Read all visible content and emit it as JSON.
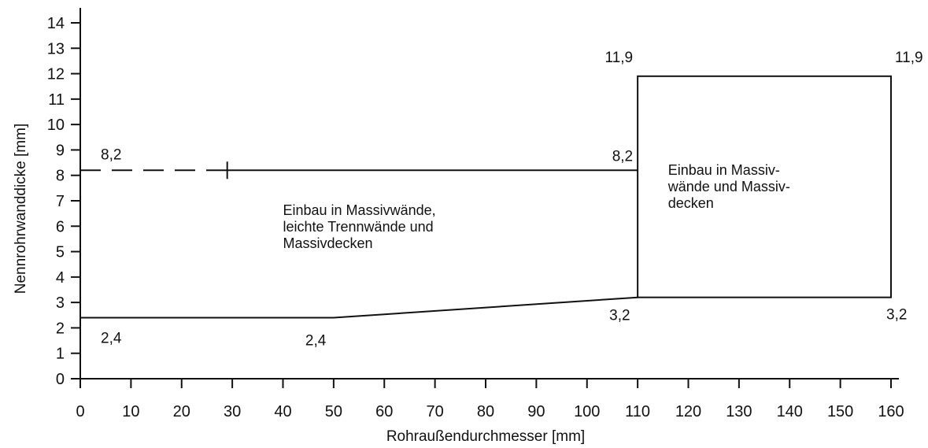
{
  "chart_data": {
    "type": "line",
    "title": "",
    "xlabel": "Rohraußendurchmesser [mm]",
    "ylabel": "Nennrohrwanddicke [mm]",
    "xlim": [
      0,
      160
    ],
    "ylim": [
      0,
      14
    ],
    "x_ticks": [
      0,
      10,
      20,
      30,
      40,
      50,
      60,
      70,
      80,
      90,
      100,
      110,
      120,
      130,
      140,
      150,
      160
    ],
    "y_ticks": [
      0,
      1,
      2,
      3,
      4,
      5,
      6,
      7,
      8,
      9,
      10,
      11,
      12,
      13,
      14
    ],
    "grid": false,
    "regions": [
      {
        "upper_dashed": [
          [
            0,
            8.2
          ],
          [
            29,
            8.2
          ]
        ],
        "tick_mark_x": 29,
        "upper": [
          [
            29,
            8.2
          ],
          [
            110,
            8.2
          ]
        ],
        "lower": [
          [
            0,
            2.4
          ],
          [
            50,
            2.4
          ],
          [
            110,
            3.2
          ]
        ],
        "left_edge_x": 110,
        "annotation": [
          "Einbau in Massivwände,",
          "leichte Trennwände und",
          "Massivdecken"
        ]
      },
      {
        "rect": {
          "x0": 110,
          "x1": 160,
          "y0": 3.2,
          "y1": 11.9
        },
        "annotation": [
          "Einbau in Massiv-",
          "wände und Massiv-",
          "decken"
        ]
      }
    ],
    "point_labels": [
      {
        "x": 0,
        "y": 8.2,
        "text": "8,2"
      },
      {
        "x": 110,
        "y": 8.2,
        "text": "8,2"
      },
      {
        "x": 110,
        "y": 11.9,
        "text": "11,9"
      },
      {
        "x": 160,
        "y": 11.9,
        "text": "11,9"
      },
      {
        "x": 0,
        "y": 2.4,
        "text": "2,4"
      },
      {
        "x": 50,
        "y": 2.4,
        "text": "2,4"
      },
      {
        "x": 110,
        "y": 3.2,
        "text": "3,2"
      },
      {
        "x": 160,
        "y": 3.2,
        "text": "3,2"
      }
    ]
  }
}
